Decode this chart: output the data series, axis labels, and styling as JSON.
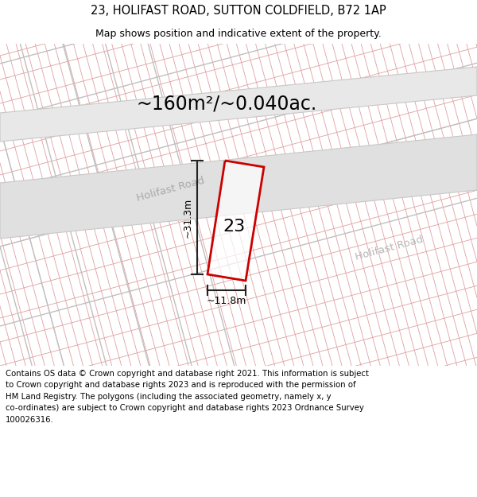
{
  "title_line1": "23, HOLIFAST ROAD, SUTTON COLDFIELD, B72 1AP",
  "title_line2": "Map shows position and indicative extent of the property.",
  "area_text": "~160m²/~0.040ac.",
  "label_number": "23",
  "dim_height": "~31.3m",
  "dim_width": "~11.8m",
  "road_name1": "Holifast Road",
  "road_name2": "Holifast Road",
  "footer_text": "Contains OS data © Crown copyright and database right 2021. This information is subject\nto Crown copyright and database rights 2023 and is reproduced with the permission of\nHM Land Registry. The polygons (including the associated geometry, namely x, y\nco-ordinates) are subject to Crown copyright and database rights 2023 Ordnance Survey\n100026316.",
  "bg_color": "#ffffff",
  "map_bg": "#ffffff",
  "grid_line_color": "#e0a0a0",
  "road_fill": "#e0e0e0",
  "road_edge": "#c8c8c8",
  "red_plot_color": "#cc0000",
  "parcel_line_color": "#c0c0c0",
  "title_fontsize": 10.5,
  "subtitle_fontsize": 9,
  "area_fontsize": 17,
  "label_fontsize": 16,
  "road_fontsize": 9.5,
  "footer_fontsize": 7.3,
  "dim_fontsize": 9
}
